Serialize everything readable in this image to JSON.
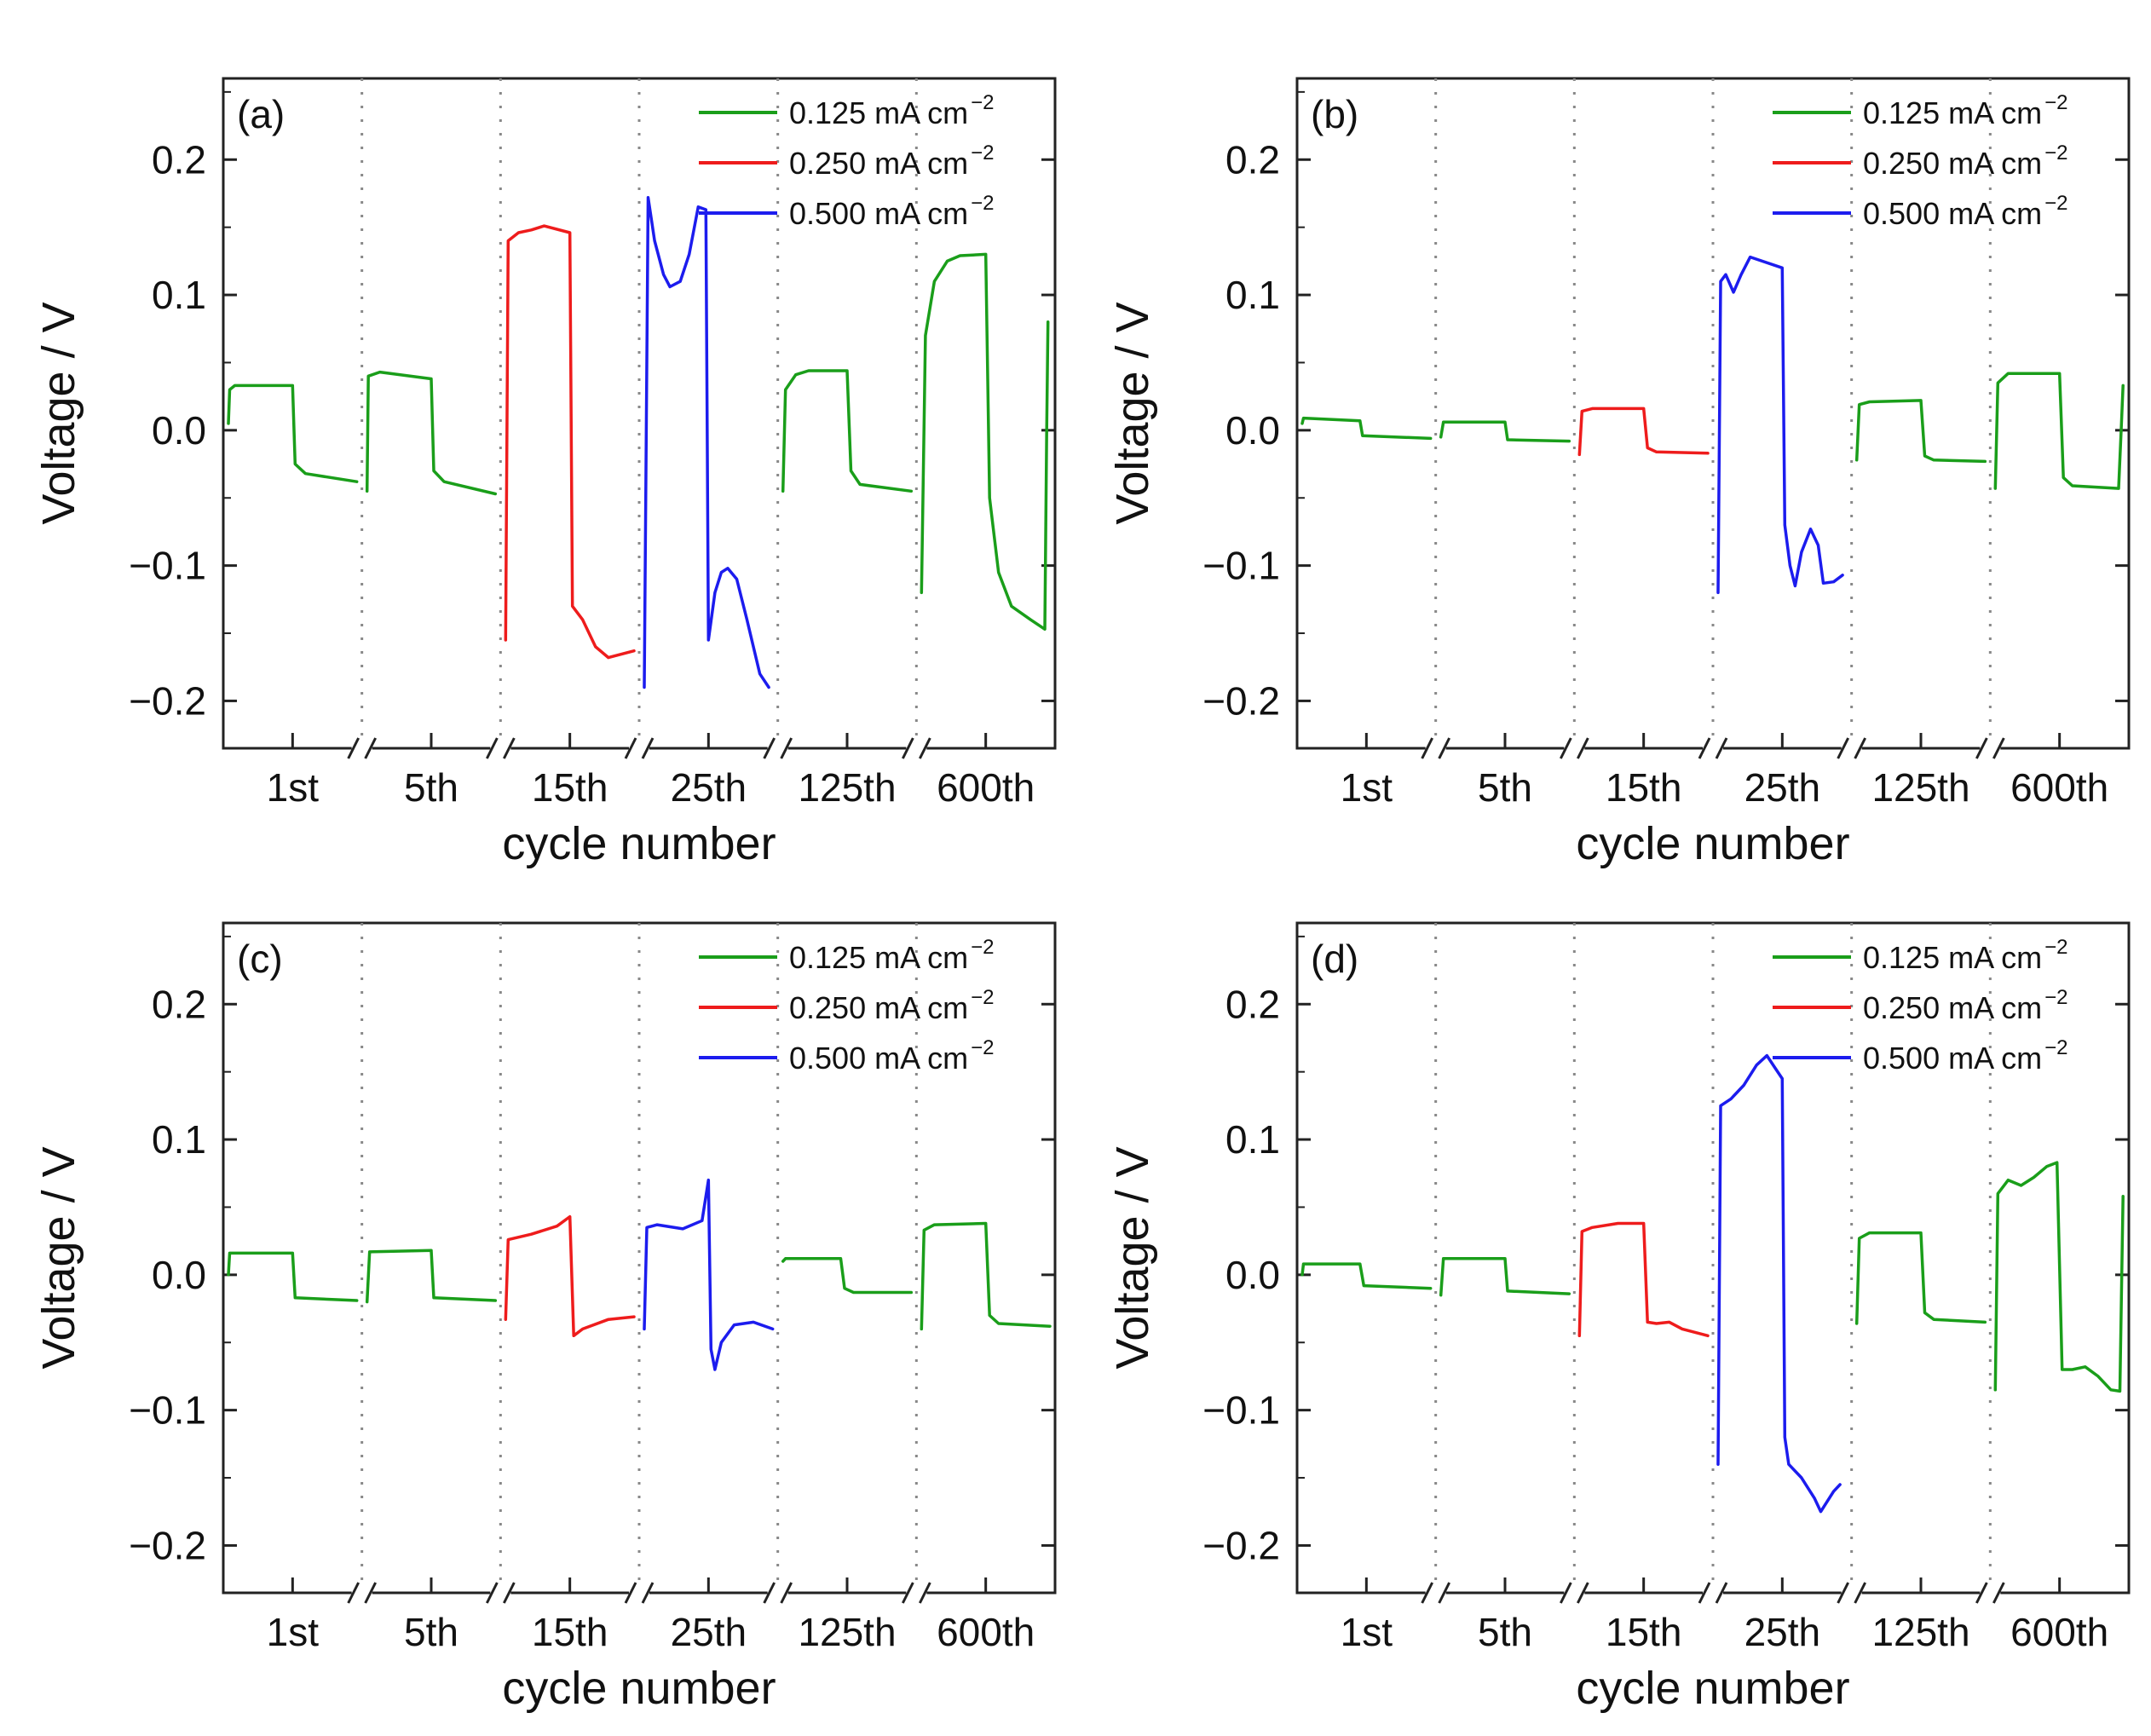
{
  "figure": {
    "xlabel": "cycle number",
    "ylabel": "Voltage / V",
    "ylim": [
      -0.235,
      0.26
    ],
    "yticks": [
      0.2,
      0.1,
      0.0,
      -0.1,
      -0.2
    ],
    "ytick_labels": [
      "0.2",
      "0.1",
      "0.0",
      "−0.1",
      "−0.2"
    ],
    "cycles": [
      "1st",
      "5th",
      "15th",
      "25th",
      "125th",
      "600th"
    ],
    "legend": [
      {
        "label": "0.125 mA cm",
        "sup": "−2",
        "color": "#1a9e1a"
      },
      {
        "label": "0.250 mA cm",
        "sup": "−2",
        "color": "#ee1c1c"
      },
      {
        "label": "0.500 mA cm",
        "sup": "−2",
        "color": "#1c1cee"
      }
    ],
    "colors": {
      "0.125": "#1a9e1a",
      "0.250": "#ee1c1c",
      "0.500": "#1c1cee",
      "axis": "#222222",
      "divider": "#888888"
    }
  },
  "chart_data": [
    {
      "type": "line",
      "panel_label": "(a)",
      "x_note": "x is fractional position within each cycle segment (0-1)",
      "segments": [
        {
          "cycle": "1st",
          "current": "0.125",
          "points": [
            [
              0,
              0.005
            ],
            [
              0.01,
              0.03
            ],
            [
              0.05,
              0.033
            ],
            [
              0.5,
              0.033
            ],
            [
              0.52,
              -0.025
            ],
            [
              0.6,
              -0.032
            ],
            [
              1,
              -0.038
            ]
          ]
        },
        {
          "cycle": "5th",
          "current": "0.125",
          "points": [
            [
              0,
              -0.045
            ],
            [
              0.01,
              0.04
            ],
            [
              0.1,
              0.043
            ],
            [
              0.5,
              0.038
            ],
            [
              0.52,
              -0.03
            ],
            [
              0.6,
              -0.038
            ],
            [
              1,
              -0.047
            ]
          ]
        },
        {
          "cycle": "15th",
          "current": "0.250",
          "points": [
            [
              0,
              -0.155
            ],
            [
              0.02,
              0.14
            ],
            [
              0.1,
              0.146
            ],
            [
              0.2,
              0.148
            ],
            [
              0.3,
              0.151
            ],
            [
              0.5,
              0.146
            ],
            [
              0.52,
              -0.13
            ],
            [
              0.6,
              -0.14
            ],
            [
              0.7,
              -0.16
            ],
            [
              0.8,
              -0.168
            ],
            [
              1,
              -0.163
            ]
          ]
        },
        {
          "cycle": "25th",
          "current": "0.500",
          "points": [
            [
              0,
              -0.19
            ],
            [
              0.03,
              0.172
            ],
            [
              0.08,
              0.14
            ],
            [
              0.15,
              0.115
            ],
            [
              0.2,
              0.106
            ],
            [
              0.28,
              0.11
            ],
            [
              0.35,
              0.13
            ],
            [
              0.42,
              0.165
            ],
            [
              0.48,
              0.163
            ],
            [
              0.5,
              -0.155
            ],
            [
              0.55,
              -0.12
            ],
            [
              0.6,
              -0.105
            ],
            [
              0.65,
              -0.102
            ],
            [
              0.72,
              -0.11
            ],
            [
              0.8,
              -0.14
            ],
            [
              0.9,
              -0.18
            ],
            [
              0.97,
              -0.19
            ]
          ]
        },
        {
          "cycle": "125th",
          "current": "0.125",
          "points": [
            [
              0,
              -0.045
            ],
            [
              0.02,
              0.03
            ],
            [
              0.1,
              0.041
            ],
            [
              0.2,
              0.044
            ],
            [
              0.5,
              0.044
            ],
            [
              0.53,
              -0.03
            ],
            [
              0.6,
              -0.04
            ],
            [
              1,
              -0.045
            ]
          ]
        },
        {
          "cycle": "600th",
          "current": "0.125",
          "points": [
            [
              0,
              -0.12
            ],
            [
              0.03,
              0.07
            ],
            [
              0.1,
              0.11
            ],
            [
              0.2,
              0.125
            ],
            [
              0.3,
              0.129
            ],
            [
              0.5,
              0.13
            ],
            [
              0.53,
              -0.05
            ],
            [
              0.6,
              -0.105
            ],
            [
              0.7,
              -0.13
            ],
            [
              0.85,
              -0.14
            ],
            [
              0.96,
              -0.147
            ],
            [
              0.975,
              0.0
            ],
            [
              0.985,
              0.08
            ]
          ]
        }
      ]
    },
    {
      "type": "line",
      "panel_label": "(b)",
      "x_note": "x is fractional position within each cycle segment (0-1)",
      "segments": [
        {
          "cycle": "1st",
          "current": "0.125",
          "points": [
            [
              0,
              0.005
            ],
            [
              0.01,
              0.009
            ],
            [
              0.45,
              0.007
            ],
            [
              0.47,
              -0.004
            ],
            [
              1,
              -0.006
            ]
          ]
        },
        {
          "cycle": "5th",
          "current": "0.125",
          "points": [
            [
              0,
              -0.005
            ],
            [
              0.02,
              0.006
            ],
            [
              0.5,
              0.006
            ],
            [
              0.52,
              -0.007
            ],
            [
              1,
              -0.008
            ]
          ]
        },
        {
          "cycle": "15th",
          "current": "0.250",
          "points": [
            [
              0,
              -0.018
            ],
            [
              0.02,
              0.014
            ],
            [
              0.1,
              0.016
            ],
            [
              0.5,
              0.016
            ],
            [
              0.53,
              -0.013
            ],
            [
              0.6,
              -0.016
            ],
            [
              1,
              -0.017
            ]
          ]
        },
        {
          "cycle": "25th",
          "current": "0.500",
          "points": [
            [
              0,
              -0.12
            ],
            [
              0.02,
              0.11
            ],
            [
              0.06,
              0.115
            ],
            [
              0.12,
              0.102
            ],
            [
              0.18,
              0.115
            ],
            [
              0.25,
              0.128
            ],
            [
              0.5,
              0.12
            ],
            [
              0.52,
              -0.07
            ],
            [
              0.56,
              -0.1
            ],
            [
              0.6,
              -0.115
            ],
            [
              0.65,
              -0.09
            ],
            [
              0.72,
              -0.073
            ],
            [
              0.78,
              -0.085
            ],
            [
              0.82,
              -0.113
            ],
            [
              0.9,
              -0.112
            ],
            [
              0.97,
              -0.107
            ]
          ]
        },
        {
          "cycle": "125th",
          "current": "0.125",
          "points": [
            [
              0,
              -0.022
            ],
            [
              0.02,
              0.019
            ],
            [
              0.1,
              0.021
            ],
            [
              0.5,
              0.022
            ],
            [
              0.53,
              -0.019
            ],
            [
              0.6,
              -0.022
            ],
            [
              1,
              -0.023
            ]
          ]
        },
        {
          "cycle": "600th",
          "current": "0.125",
          "points": [
            [
              0,
              -0.043
            ],
            [
              0.02,
              0.035
            ],
            [
              0.1,
              0.042
            ],
            [
              0.5,
              0.042
            ],
            [
              0.53,
              -0.035
            ],
            [
              0.6,
              -0.041
            ],
            [
              0.96,
              -0.043
            ],
            [
              0.98,
              0.0
            ],
            [
              0.995,
              0.033
            ]
          ]
        }
      ]
    },
    {
      "type": "line",
      "panel_label": "(c)",
      "x_note": "x is fractional position within each cycle segment (0-1)",
      "segments": [
        {
          "cycle": "1st",
          "current": "0.125",
          "points": [
            [
              0,
              0.0
            ],
            [
              0.01,
              0.016
            ],
            [
              0.5,
              0.016
            ],
            [
              0.52,
              -0.017
            ],
            [
              1,
              -0.019
            ]
          ]
        },
        {
          "cycle": "5th",
          "current": "0.125",
          "points": [
            [
              0,
              -0.02
            ],
            [
              0.02,
              0.017
            ],
            [
              0.5,
              0.018
            ],
            [
              0.52,
              -0.017
            ],
            [
              1,
              -0.019
            ]
          ]
        },
        {
          "cycle": "15th",
          "current": "0.250",
          "points": [
            [
              0,
              -0.033
            ],
            [
              0.02,
              0.026
            ],
            [
              0.2,
              0.03
            ],
            [
              0.4,
              0.036
            ],
            [
              0.5,
              0.043
            ],
            [
              0.53,
              -0.045
            ],
            [
              0.6,
              -0.04
            ],
            [
              0.8,
              -0.033
            ],
            [
              1,
              -0.031
            ]
          ]
        },
        {
          "cycle": "25th",
          "current": "0.500",
          "points": [
            [
              0,
              -0.04
            ],
            [
              0.02,
              0.035
            ],
            [
              0.1,
              0.037
            ],
            [
              0.3,
              0.034
            ],
            [
              0.45,
              0.04
            ],
            [
              0.5,
              0.07
            ],
            [
              0.52,
              -0.055
            ],
            [
              0.55,
              -0.07
            ],
            [
              0.6,
              -0.05
            ],
            [
              0.7,
              -0.037
            ],
            [
              0.85,
              -0.035
            ],
            [
              1,
              -0.04
            ]
          ]
        },
        {
          "cycle": "125th",
          "current": "0.125",
          "points": [
            [
              0,
              0.01
            ],
            [
              0.02,
              0.012
            ],
            [
              0.45,
              0.012
            ],
            [
              0.48,
              -0.01
            ],
            [
              0.55,
              -0.013
            ],
            [
              1,
              -0.013
            ]
          ]
        },
        {
          "cycle": "600th",
          "current": "0.125",
          "points": [
            [
              0,
              -0.04
            ],
            [
              0.02,
              0.033
            ],
            [
              0.1,
              0.037
            ],
            [
              0.5,
              0.038
            ],
            [
              0.53,
              -0.03
            ],
            [
              0.6,
              -0.036
            ],
            [
              1,
              -0.038
            ]
          ]
        }
      ]
    },
    {
      "type": "line",
      "panel_label": "(d)",
      "x_note": "x is fractional position within each cycle segment (0-1)",
      "segments": [
        {
          "cycle": "1st",
          "current": "0.125",
          "points": [
            [
              0,
              0.0
            ],
            [
              0.01,
              0.008
            ],
            [
              0.45,
              0.008
            ],
            [
              0.48,
              -0.008
            ],
            [
              1,
              -0.01
            ]
          ]
        },
        {
          "cycle": "5th",
          "current": "0.125",
          "points": [
            [
              0,
              -0.015
            ],
            [
              0.02,
              0.012
            ],
            [
              0.5,
              0.012
            ],
            [
              0.52,
              -0.012
            ],
            [
              1,
              -0.014
            ]
          ]
        },
        {
          "cycle": "15th",
          "current": "0.250",
          "points": [
            [
              0,
              -0.045
            ],
            [
              0.02,
              0.032
            ],
            [
              0.1,
              0.035
            ],
            [
              0.3,
              0.038
            ],
            [
              0.5,
              0.038
            ],
            [
              0.53,
              -0.035
            ],
            [
              0.6,
              -0.036
            ],
            [
              0.7,
              -0.035
            ],
            [
              0.8,
              -0.04
            ],
            [
              1,
              -0.045
            ]
          ]
        },
        {
          "cycle": "25th",
          "current": "0.500",
          "points": [
            [
              0,
              -0.14
            ],
            [
              0.02,
              0.125
            ],
            [
              0.1,
              0.13
            ],
            [
              0.2,
              0.14
            ],
            [
              0.3,
              0.155
            ],
            [
              0.38,
              0.162
            ],
            [
              0.45,
              0.152
            ],
            [
              0.5,
              0.145
            ],
            [
              0.52,
              -0.12
            ],
            [
              0.55,
              -0.14
            ],
            [
              0.65,
              -0.15
            ],
            [
              0.75,
              -0.165
            ],
            [
              0.8,
              -0.175
            ],
            [
              0.9,
              -0.16
            ],
            [
              0.95,
              -0.155
            ]
          ]
        },
        {
          "cycle": "125th",
          "current": "0.125",
          "points": [
            [
              0,
              -0.036
            ],
            [
              0.02,
              0.027
            ],
            [
              0.1,
              0.031
            ],
            [
              0.5,
              0.031
            ],
            [
              0.53,
              -0.028
            ],
            [
              0.6,
              -0.033
            ],
            [
              1,
              -0.035
            ]
          ]
        },
        {
          "cycle": "600th",
          "current": "0.125",
          "points": [
            [
              0,
              -0.085
            ],
            [
              0.02,
              0.06
            ],
            [
              0.1,
              0.07
            ],
            [
              0.2,
              0.066
            ],
            [
              0.3,
              0.072
            ],
            [
              0.4,
              0.08
            ],
            [
              0.48,
              0.083
            ],
            [
              0.52,
              -0.07
            ],
            [
              0.6,
              -0.07
            ],
            [
              0.7,
              -0.068
            ],
            [
              0.8,
              -0.075
            ],
            [
              0.9,
              -0.085
            ],
            [
              0.97,
              -0.086
            ],
            [
              0.985,
              0.0
            ],
            [
              0.995,
              0.058
            ]
          ]
        }
      ]
    }
  ]
}
